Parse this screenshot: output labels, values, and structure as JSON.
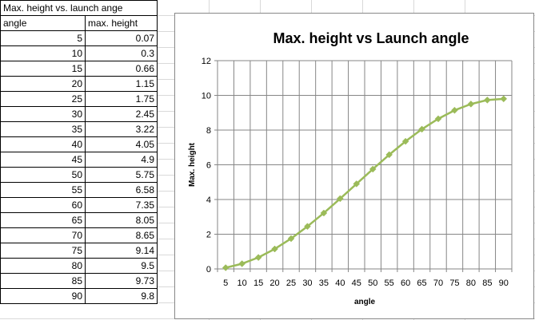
{
  "sheet": {
    "title_cell": "Max. height vs. launch ange",
    "headers": [
      "angle",
      "max. height"
    ],
    "rows": [
      [
        "5",
        "0.07"
      ],
      [
        "10",
        "0.3"
      ],
      [
        "15",
        "0.66"
      ],
      [
        "20",
        "1.15"
      ],
      [
        "25",
        "1.75"
      ],
      [
        "30",
        "2.45"
      ],
      [
        "35",
        "3.22"
      ],
      [
        "40",
        "4.05"
      ],
      [
        "45",
        "4.9"
      ],
      [
        "50",
        "5.75"
      ],
      [
        "55",
        "6.58"
      ],
      [
        "60",
        "7.35"
      ],
      [
        "65",
        "8.05"
      ],
      [
        "70",
        "8.65"
      ],
      [
        "75",
        "9.14"
      ],
      [
        "80",
        "9.5"
      ],
      [
        "85",
        "9.73"
      ],
      [
        "90",
        "9.8"
      ]
    ]
  },
  "chart_data": {
    "type": "line",
    "title": "Max. height vs Launch angle",
    "xlabel": "angle",
    "ylabel": "Max. height",
    "x": [
      5,
      10,
      15,
      20,
      25,
      30,
      35,
      40,
      45,
      50,
      55,
      60,
      65,
      70,
      75,
      80,
      85,
      90
    ],
    "series": [
      {
        "values": [
          0.07,
          0.3,
          0.66,
          1.15,
          1.75,
          2.45,
          3.22,
          4.05,
          4.9,
          5.75,
          6.58,
          7.35,
          8.05,
          8.65,
          9.14,
          9.5,
          9.73,
          9.8
        ]
      }
    ],
    "ylim": [
      0,
      12
    ],
    "yticks": [
      "0",
      "2",
      "4",
      "6",
      "8",
      "10",
      "12"
    ],
    "xticks": [
      "5",
      "10",
      "15",
      "20",
      "25",
      "30",
      "35",
      "40",
      "45",
      "50",
      "55",
      "60",
      "65",
      "70",
      "75",
      "80",
      "85",
      "90"
    ],
    "grid": true,
    "marker": "diamond",
    "series_color": "#9bbb59",
    "grid_color": "#868686"
  }
}
